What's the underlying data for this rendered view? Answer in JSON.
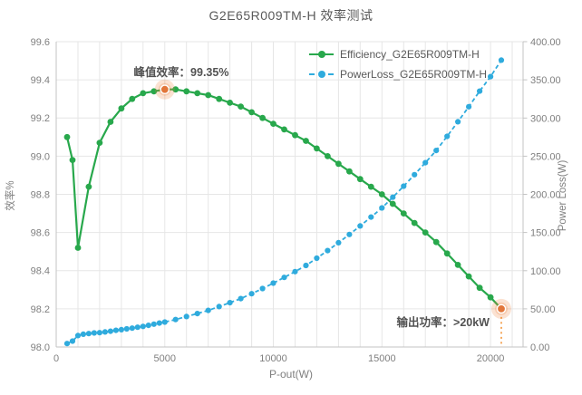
{
  "chart_data": {
    "type": "line",
    "title": "G2E65R009TM-H 效率测试",
    "xlabel": "P-out(W)",
    "ylabel_left": "效率%",
    "ylabel_right": "Power Loss(W)",
    "xlim": [
      0,
      21500
    ],
    "x_ticks": [
      0,
      5000,
      10000,
      15000,
      20000
    ],
    "x_grid_step": 1000,
    "ylim_left": [
      98.0,
      99.6
    ],
    "yticks_left": [
      98.0,
      98.2,
      98.4,
      98.6,
      98.8,
      99.0,
      99.2,
      99.4,
      99.6
    ],
    "ylim_right": [
      0,
      400
    ],
    "yticks_right": [
      0,
      50,
      100,
      150,
      200,
      250,
      300,
      350,
      400
    ],
    "grid": true,
    "legend_position": "top-right-inside",
    "series": [
      {
        "name": "Efficiency_G2E65R009TM-H",
        "axis": "left",
        "color": "#28a84c",
        "line": "solid",
        "marker": "circle",
        "x": [
          500,
          750,
          1000,
          1500,
          2000,
          2500,
          3000,
          3500,
          4000,
          4500,
          5000,
          5500,
          6000,
          6500,
          7000,
          7500,
          8000,
          8500,
          9000,
          9500,
          10000,
          10500,
          11000,
          11500,
          12000,
          12500,
          13000,
          13500,
          14000,
          14500,
          15000,
          15500,
          16000,
          16500,
          17000,
          17500,
          18000,
          18500,
          19000,
          19500,
          20000,
          20500
        ],
        "values": [
          99.1,
          98.98,
          98.52,
          98.84,
          99.07,
          99.18,
          99.25,
          99.3,
          99.33,
          99.34,
          99.35,
          99.35,
          99.34,
          99.33,
          99.32,
          99.3,
          99.28,
          99.26,
          99.23,
          99.2,
          99.17,
          99.14,
          99.11,
          99.08,
          99.04,
          99.0,
          98.96,
          98.92,
          98.88,
          98.84,
          98.8,
          98.75,
          98.7,
          98.65,
          98.6,
          98.55,
          98.49,
          98.43,
          98.37,
          98.31,
          98.26,
          98.2
        ]
      },
      {
        "name": "PowerLoss_G2E65R009TM-H",
        "axis": "right",
        "color": "#2fabdd",
        "line": "dashed",
        "marker": "circle",
        "x": [
          500,
          750,
          1000,
          1250,
          1500,
          1750,
          2000,
          2250,
          2500,
          2750,
          3000,
          3250,
          3500,
          3750,
          4000,
          4250,
          4500,
          4750,
          5000,
          5500,
          6000,
          6500,
          7000,
          7500,
          8000,
          8500,
          9000,
          9500,
          10000,
          10500,
          11000,
          11500,
          12000,
          12500,
          13000,
          13500,
          14000,
          14500,
          15000,
          15500,
          16000,
          16500,
          17000,
          17500,
          18000,
          18500,
          19000,
          19500,
          20000,
          20500
        ],
        "values": [
          4.5,
          7.7,
          15.0,
          16.7,
          17.6,
          18.4,
          18.8,
          19.7,
          20.7,
          21.8,
          22.7,
          23.7,
          24.7,
          25.9,
          27.0,
          28.4,
          29.9,
          31.3,
          32.7,
          36.0,
          39.9,
          43.8,
          47.9,
          52.9,
          58.0,
          63.4,
          69.8,
          76.6,
          83.7,
          91.1,
          98.8,
          106.8,
          116.3,
          126.3,
          136.6,
          147.4,
          158.6,
          170.2,
          182.2,
          196.2,
          210.7,
          225.8,
          241.4,
          257.5,
          276.0,
          295.1,
          314.8,
          335.2,
          354.2,
          375.8
        ]
      }
    ],
    "annotations": {
      "peak": {
        "text": "峰值效率：99.35%"
      },
      "output": {
        "text": "输出功率：>20kW"
      }
    },
    "highlights": [
      {
        "series": 0,
        "x": 5000,
        "drop_line": false
      },
      {
        "series": 0,
        "x": 20500,
        "drop_line": true
      }
    ],
    "colors": {
      "grid": "#e6e6e6",
      "axis": "#c3c3c3",
      "tick_text": "#7f7f7f",
      "title_text": "#595959",
      "annotation_text": "#525252",
      "highlight": "#e2763a",
      "highlight_halo": "rgba(237,125,49,0.22)",
      "drop_line": "#f5a95f"
    }
  }
}
